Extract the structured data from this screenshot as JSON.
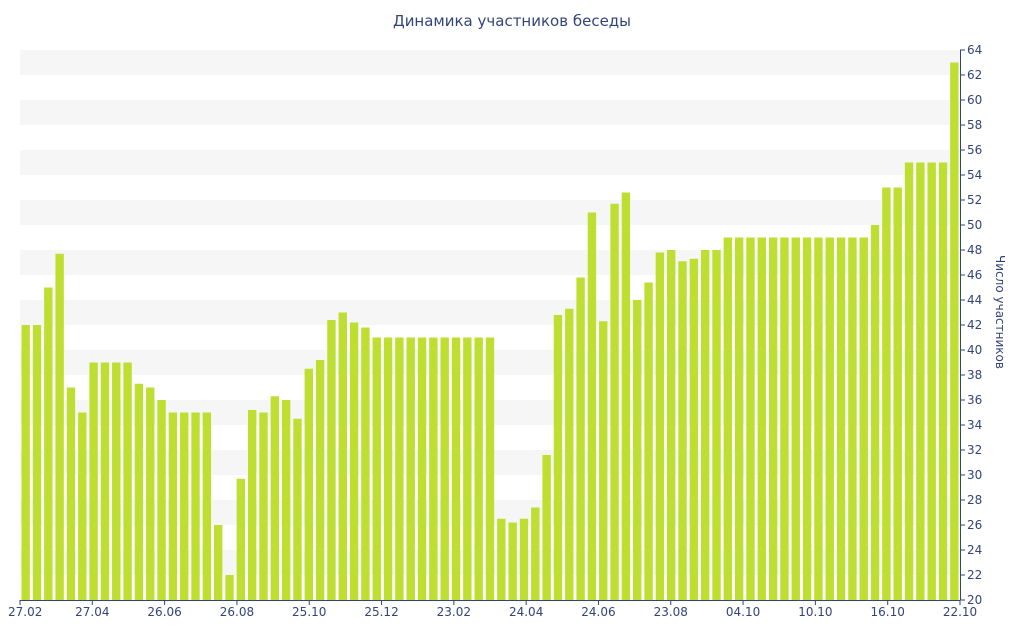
{
  "chart_data": {
    "type": "bar",
    "title": "Динамика участников беседы",
    "ylabel": "Число участников",
    "xlabel": "",
    "ylim": [
      20,
      64
    ],
    "y_ticks": [
      20,
      22,
      24,
      26,
      28,
      30,
      32,
      34,
      36,
      38,
      40,
      42,
      44,
      46,
      48,
      50,
      52,
      54,
      56,
      58,
      60,
      62,
      64
    ],
    "y_axis_position": "right",
    "x_tick_labels": [
      "27.02",
      "27.04",
      "26.06",
      "26.08",
      "25.10",
      "25.12",
      "23.02",
      "24.04",
      "24.06",
      "23.08",
      "04.10",
      "10.10",
      "16.10",
      "22.10"
    ],
    "grid": "horizontal alternating bands",
    "values": [
      42,
      42,
      45,
      47.7,
      37,
      35,
      39,
      39,
      39,
      39,
      37.3,
      37,
      36,
      35,
      35,
      35,
      35,
      26,
      22,
      29.7,
      35.2,
      35,
      36.3,
      36,
      34.5,
      38.5,
      39.2,
      42.4,
      43,
      42.2,
      41.8,
      41,
      41,
      41,
      41,
      41,
      41,
      41,
      41,
      41,
      41,
      41,
      26.5,
      26.2,
      26.5,
      27.4,
      31.6,
      42.8,
      43.3,
      45.8,
      51,
      42.3,
      51.7,
      52.6,
      44,
      45.4,
      47.8,
      48,
      47.1,
      47.3,
      48,
      48,
      49,
      49,
      49,
      49,
      49,
      49,
      49,
      49,
      49,
      49,
      49,
      49,
      49,
      50,
      53,
      53,
      55,
      55,
      55,
      55,
      63
    ]
  },
  "colors": {
    "bar": "#bedf31",
    "band": "#f6f6f6",
    "axis": "#33447a",
    "text": "#33447a"
  }
}
